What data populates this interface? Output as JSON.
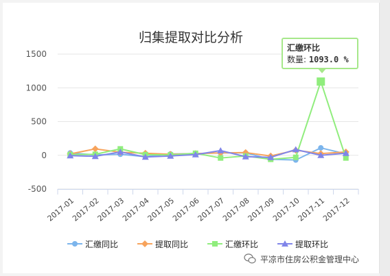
{
  "chart_data": {
    "type": "line",
    "title": "归集提取对比分析",
    "categories": [
      "2017-01",
      "2017-02",
      "2017-03",
      "2017-04",
      "2017-05",
      "2017-06",
      "2017-07",
      "2017-08",
      "2017-09",
      "2017-10",
      "2017-11",
      "2017-12"
    ],
    "ylim": [
      -500,
      1500
    ],
    "yticks": [
      -500,
      0,
      500,
      1000,
      1500
    ],
    "grid": true,
    "legend_position": "bottom",
    "series": [
      {
        "name": "汇缴同比",
        "color": "#7cb5ec",
        "marker": "circle",
        "values": [
          35,
          5,
          15,
          -20,
          20,
          25,
          35,
          35,
          -60,
          -70,
          110,
          20
        ]
      },
      {
        "name": "提取同比",
        "color": "#f7a35c",
        "marker": "diamond",
        "values": [
          20,
          95,
          45,
          30,
          15,
          25,
          35,
          40,
          -10,
          75,
          25,
          50
        ]
      },
      {
        "name": "汇缴环比",
        "color": "#90ed7d",
        "marker": "square",
        "values": [
          10,
          15,
          95,
          10,
          5,
          30,
          -40,
          -10,
          -60,
          -30,
          1093,
          -40
        ]
      },
      {
        "name": "提取环比",
        "color": "#8085e9",
        "marker": "triangle",
        "values": [
          -5,
          -15,
          50,
          -25,
          -10,
          10,
          70,
          -20,
          -30,
          85,
          0,
          30
        ]
      }
    ]
  },
  "tooltip": {
    "title": "汇缴环比",
    "label": "数量:",
    "value": "1093.0 %"
  },
  "watermark": {
    "text": "平凉市住房公积金管理中心"
  }
}
